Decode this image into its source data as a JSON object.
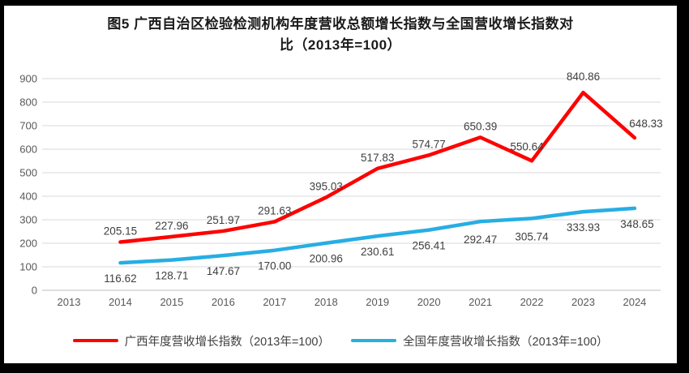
{
  "chart_data": {
    "type": "line",
    "title": "图5 广西自治区检验检测机构年度营收总额增长指数与全国营收增长指数对比（2013年=100）",
    "title_lines": [
      "图5 广西自治区检验检测机构年度营收总额增长指数与全国营收增长指数对",
      "比（2013年=100）"
    ],
    "categories": [
      "2013",
      "2014",
      "2015",
      "2016",
      "2017",
      "2018",
      "2019",
      "2020",
      "2021",
      "2022",
      "2023",
      "2024"
    ],
    "y_ticks": [
      0,
      100,
      200,
      300,
      400,
      500,
      600,
      700,
      800,
      900
    ],
    "ylim": [
      0,
      900
    ],
    "grid": "horizontal",
    "legend_position": "bottom",
    "colors": {
      "guangxi_red": "#FF0000",
      "national_blue": "#27AEE3",
      "gridline": "#D9D9D9",
      "axis_line": "#BFBFBF",
      "axis_text": "#595959",
      "data_label_text": "#3F3F3F"
    },
    "series": [
      {
        "name": "广西年度营收增长指数（2013年=100）",
        "color": "#FF0000",
        "start_index": 1,
        "values": [
          205.15,
          227.96,
          251.97,
          291.63,
          395.03,
          517.83,
          574.77,
          650.39,
          550.64,
          840.86,
          648.33
        ],
        "label_side": "above",
        "label_offsets": {
          "8": [
            -6,
            -4
          ],
          "9": [
            0,
            -6
          ],
          "10": [
            14,
            -4
          ]
        }
      },
      {
        "name": "全国年度营收增长指数（2013年=100）",
        "color": "#27AEE3",
        "start_index": 1,
        "values": [
          116.62,
          128.71,
          147.67,
          170.0,
          200.96,
          230.61,
          256.41,
          292.47,
          305.74,
          333.93,
          348.65
        ],
        "label_side": "below",
        "label_offsets": {
          "7": [
            0,
            3
          ],
          "8": [
            0,
            3
          ],
          "10": [
            3,
            0
          ]
        }
      }
    ]
  }
}
